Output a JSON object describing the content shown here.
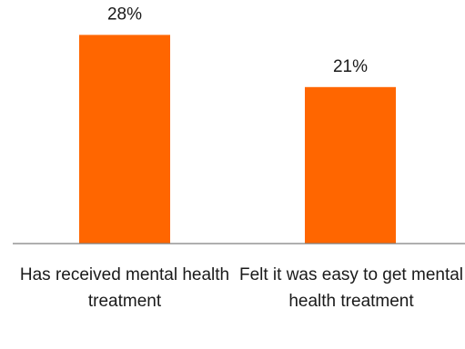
{
  "chart_data": {
    "type": "bar",
    "categories": [
      "Has received mental health treatment",
      "Felt it was easy to get mental health treatment"
    ],
    "values": [
      28,
      21
    ],
    "data_labels": [
      "28%",
      "21%"
    ],
    "bar_color": "#FF6600",
    "axis_color": "#7f7f7f",
    "ylim": [
      0,
      30
    ],
    "grid": false,
    "legend": "none"
  }
}
